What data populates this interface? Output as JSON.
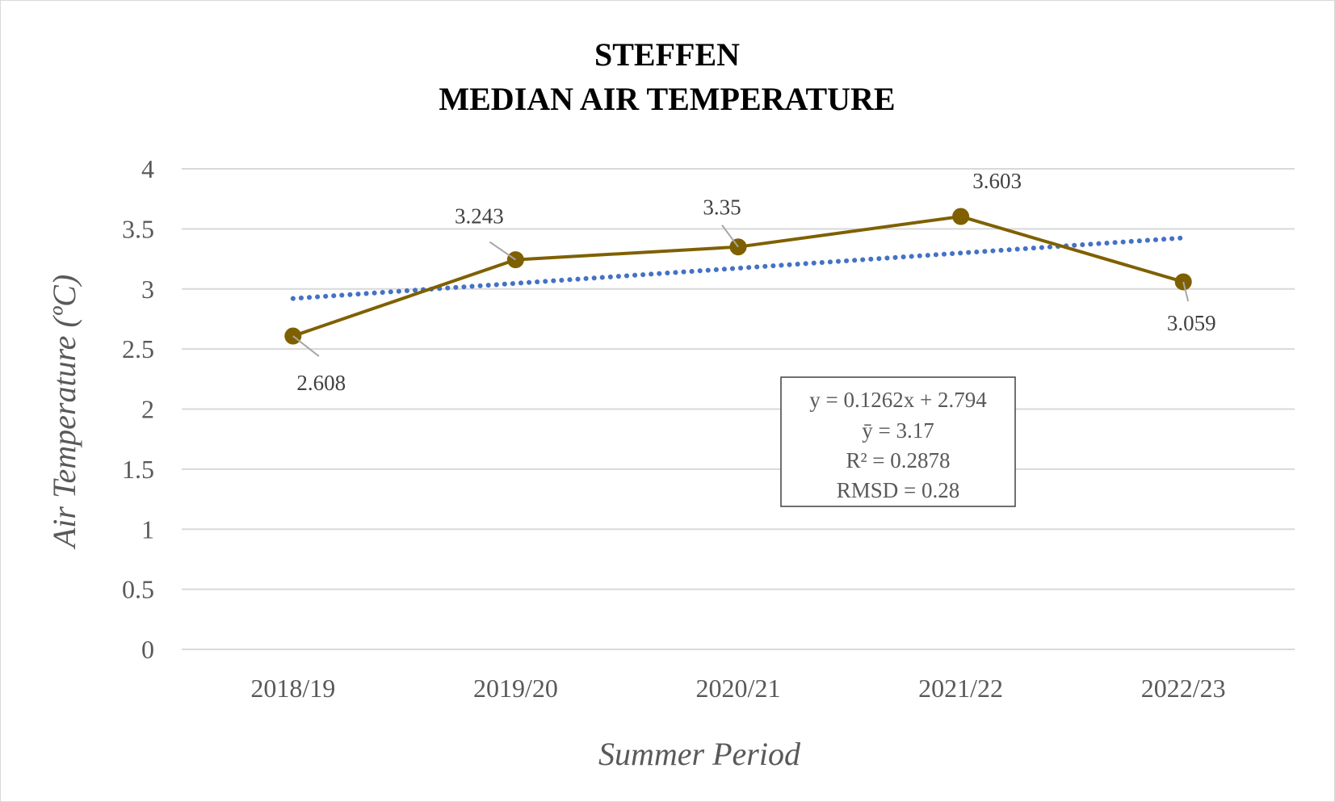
{
  "chart_data": {
    "type": "line",
    "title_lines": [
      "STEFFEN",
      "MEDIAN AIR TEMPERATURE"
    ],
    "xlabel": "Summer Period",
    "ylabel": "Air Temperature (ºC)",
    "categories": [
      "2018/19",
      "2019/20",
      "2020/21",
      "2021/22",
      "2022/23"
    ],
    "series": [
      {
        "values": [
          2.608,
          3.243,
          3.35,
          3.603,
          3.059
        ],
        "data_labels": [
          "2.608",
          "3.243",
          "3.35",
          "3.603",
          "3.059"
        ],
        "color": "#7f6000"
      }
    ],
    "trendline": {
      "type": "linear",
      "slope": 0.1262,
      "intercept": 2.794,
      "color": "#4472c4",
      "style": "dotted"
    },
    "ylim": [
      0,
      4
    ],
    "yticks": [
      "0",
      "0.5",
      "1",
      "1.5",
      "2",
      "2.5",
      "3",
      "3.5",
      "4"
    ],
    "grid": true,
    "gridline_color": "#d9d9d9",
    "stats_box": [
      "y = 0.1262x + 2.794",
      "ȳ = 3.17",
      "R² = 0.2878",
      "RMSD = 0.28"
    ]
  }
}
